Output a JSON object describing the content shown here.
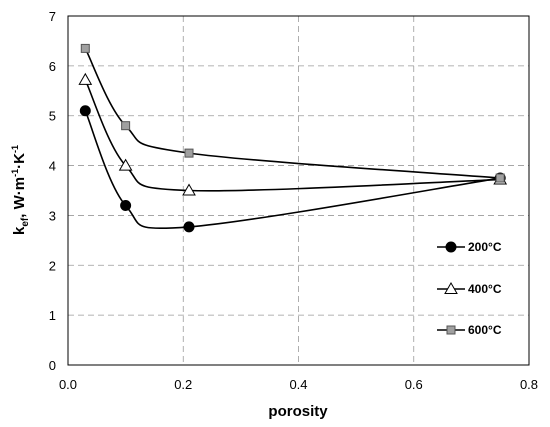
{
  "chart_data": {
    "type": "line",
    "title": "",
    "xlabel": "porosity",
    "ylabel": {
      "main": "k",
      "sub": "ef",
      "unit_prefix": ", W·m",
      "sup1": "-1",
      "mid": "·K",
      "sup2": "-1"
    },
    "xlim": [
      0,
      0.8
    ],
    "ylim": [
      0,
      7
    ],
    "xticks": [
      "0.0",
      "0.2",
      "0.4",
      "0.6",
      "0.8"
    ],
    "yticks": [
      "0",
      "1",
      "2",
      "3",
      "4",
      "5",
      "6",
      "7"
    ],
    "grid": true,
    "legend_position": "right",
    "series": [
      {
        "name": "200°C",
        "marker": "circle",
        "marker_color": "#000000",
        "x": [
          0.03,
          0.1,
          0.21,
          0.75
        ],
        "y": [
          5.1,
          3.2,
          2.77,
          3.75
        ]
      },
      {
        "name": "400°C",
        "marker": "triangle",
        "marker_color": "#ffffff",
        "x": [
          0.03,
          0.1,
          0.21,
          0.75
        ],
        "y": [
          5.72,
          4.0,
          3.5,
          3.72
        ]
      },
      {
        "name": "600°C",
        "marker": "square",
        "marker_color": "#a0a0a0",
        "x": [
          0.03,
          0.1,
          0.21,
          0.75
        ],
        "y": [
          6.35,
          4.8,
          4.25,
          3.75
        ]
      }
    ]
  }
}
